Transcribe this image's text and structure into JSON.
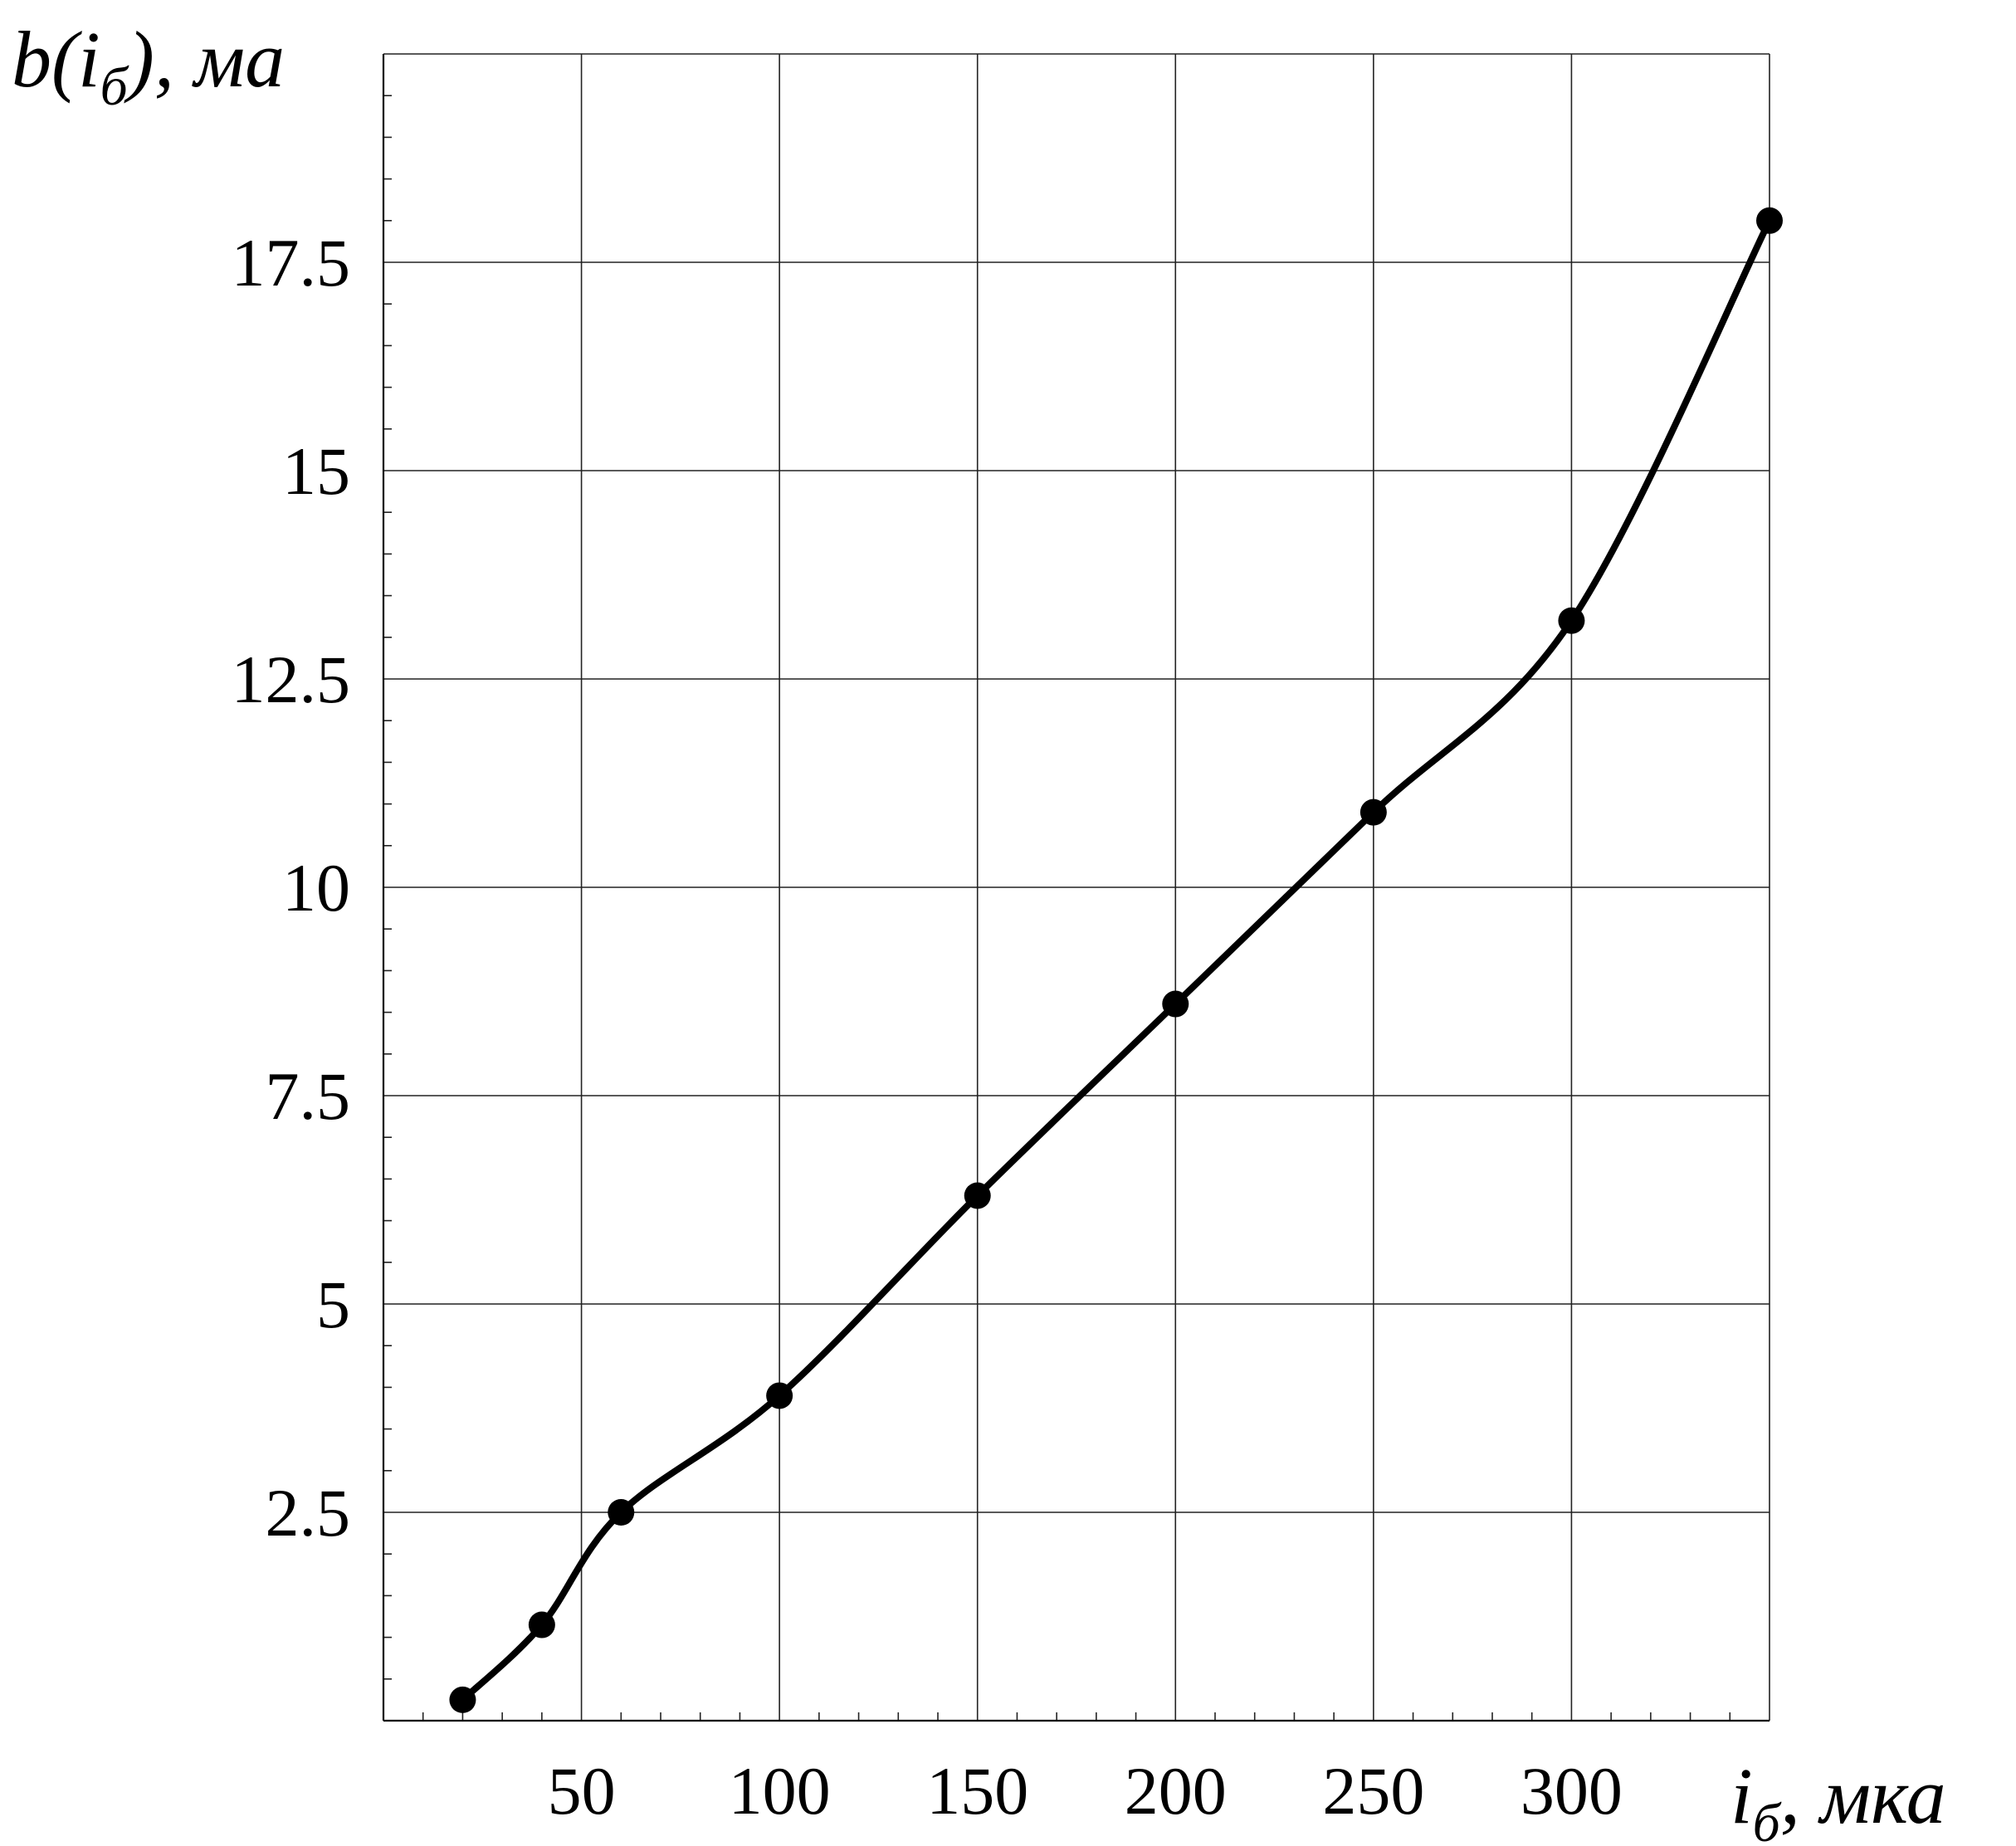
{
  "chart_data": {
    "type": "line",
    "title": "",
    "xlabel_base": "i",
    "xlabel_sub": "б",
    "xlabel_unit": ", мка",
    "ylabel_base": "b(i",
    "ylabel_sub": "б",
    "ylabel_unit": "), ма",
    "xlim": [
      0,
      350
    ],
    "ylim": [
      0,
      20
    ],
    "x_ticks": [
      {
        "value": 50,
        "label": "50"
      },
      {
        "value": 100,
        "label": "100"
      },
      {
        "value": 150,
        "label": "150"
      },
      {
        "value": 200,
        "label": "200"
      },
      {
        "value": 250,
        "label": "250"
      },
      {
        "value": 300,
        "label": "300"
      }
    ],
    "y_ticks": [
      {
        "value": 2.5,
        "label": "2.5"
      },
      {
        "value": 5,
        "label": "5"
      },
      {
        "value": 7.5,
        "label": "7.5"
      },
      {
        "value": 10,
        "label": "10"
      },
      {
        "value": 12.5,
        "label": "12.5"
      },
      {
        "value": 15,
        "label": "15"
      },
      {
        "value": 17.5,
        "label": "17.5"
      }
    ],
    "x_grid_values": [
      50,
      100,
      150,
      200,
      250,
      300,
      350
    ],
    "y_grid_values": [
      2.5,
      5,
      7.5,
      10,
      12.5,
      15,
      17.5,
      20
    ],
    "x_minor_step": 10,
    "y_minor_step": 0.5,
    "grid": true,
    "series": [
      {
        "x": [
          20,
          40,
          60,
          100,
          150,
          200,
          250,
          300,
          350
        ],
        "y": [
          0.25,
          1.15,
          2.5,
          3.9,
          6.3,
          8.6,
          10.9,
          13.2,
          18.0
        ]
      }
    ],
    "colors": {
      "line": "#000000",
      "grid": "#222222",
      "background": "#ffffff"
    }
  }
}
